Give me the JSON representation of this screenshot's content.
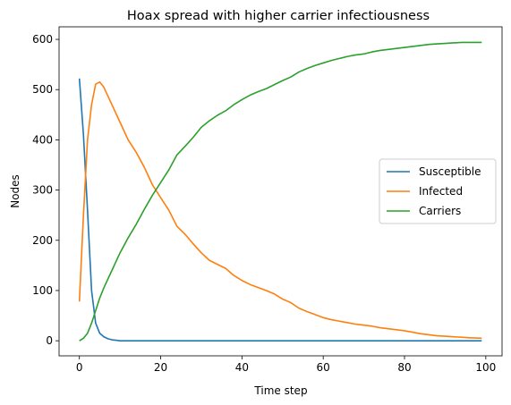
{
  "chart_data": {
    "type": "line",
    "title": "Hoax spread with higher carrier infectiousness",
    "xlabel": "Time step",
    "ylabel": "Nodes",
    "xlim": [
      -5,
      104
    ],
    "ylim": [
      -30,
      625
    ],
    "xticks": [
      0,
      20,
      40,
      60,
      80,
      100
    ],
    "yticks": [
      0,
      100,
      200,
      300,
      400,
      500,
      600
    ],
    "grid": false,
    "legend_position": "center-right",
    "series": [
      {
        "name": "Susceptible",
        "color": "#1f77b4",
        "x": [
          0,
          1,
          2,
          3,
          4,
          5,
          6,
          7,
          8,
          9,
          10,
          12,
          15,
          20,
          30,
          40,
          50,
          60,
          70,
          80,
          90,
          99
        ],
        "y": [
          522,
          410,
          260,
          100,
          35,
          15,
          8,
          4,
          2,
          1,
          0,
          0,
          0,
          0,
          0,
          0,
          0,
          0,
          0,
          0,
          0,
          0
        ]
      },
      {
        "name": "Infected",
        "color": "#ff7f0e",
        "x": [
          0,
          1,
          2,
          3,
          4,
          5,
          6,
          8,
          10,
          12,
          14,
          16,
          18,
          20,
          22,
          24,
          26,
          28,
          30,
          32,
          34,
          36,
          38,
          40,
          42,
          44,
          46,
          48,
          50,
          52,
          54,
          56,
          58,
          60,
          62,
          64,
          66,
          68,
          70,
          72,
          74,
          76,
          78,
          80,
          82,
          84,
          86,
          88,
          90,
          92,
          94,
          96,
          99
        ],
        "y": [
          78,
          250,
          400,
          470,
          511,
          515,
          505,
          470,
          435,
          400,
          375,
          345,
          310,
          285,
          260,
          228,
          212,
          193,
          175,
          160,
          152,
          144,
          130,
          120,
          112,
          106,
          100,
          93,
          83,
          76,
          65,
          58,
          52,
          46,
          42,
          39,
          36,
          33,
          31,
          29,
          26,
          24,
          22,
          20,
          17,
          14,
          12,
          10,
          9,
          8,
          7,
          6,
          5
        ]
      },
      {
        "name": "Carriers",
        "color": "#2ca02c",
        "x": [
          0,
          1,
          2,
          3,
          4,
          5,
          6,
          8,
          10,
          12,
          14,
          16,
          18,
          20,
          22,
          24,
          26,
          28,
          30,
          32,
          34,
          36,
          38,
          40,
          42,
          44,
          46,
          48,
          50,
          52,
          54,
          56,
          58,
          60,
          62,
          64,
          66,
          68,
          70,
          72,
          74,
          76,
          78,
          80,
          82,
          84,
          86,
          88,
          90,
          92,
          94,
          96,
          99
        ],
        "y": [
          0,
          5,
          15,
          35,
          60,
          85,
          105,
          140,
          175,
          205,
          232,
          262,
          290,
          315,
          340,
          370,
          387,
          405,
          425,
          438,
          449,
          458,
          470,
          480,
          489,
          496,
          502,
          510,
          518,
          525,
          535,
          542,
          548,
          553,
          558,
          562,
          566,
          569,
          571,
          575,
          578,
          580,
          582,
          584,
          586,
          588,
          590,
          591,
          592,
          593,
          594,
          594,
          594
        ]
      }
    ]
  }
}
